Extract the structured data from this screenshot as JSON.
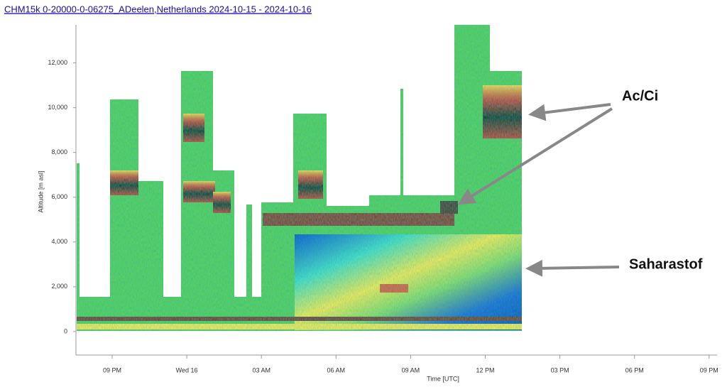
{
  "chart_data": {
    "type": "heatmap",
    "title": "CHM15k 0-20000-0-06275_ADeelen,Netherlands 2024-10-15 - 2024-10-16",
    "y_label": "Altitude [m asl]",
    "x_label": "Time [UTC]",
    "ylim": [
      -1050,
      13700
    ],
    "yticks": [
      0,
      {
        "value": 2000,
        "label": "2,000"
      },
      {
        "value": 4000,
        "label": "4,000"
      },
      {
        "value": 6000,
        "label": "6,000"
      },
      {
        "value": 8000,
        "label": "8,000"
      },
      {
        "value": 10000,
        "label": "10,000"
      },
      {
        "value": 12000,
        "label": "12,000"
      }
    ],
    "xticks": [
      "09 PM",
      "Wed 16",
      "03 AM",
      "06 AM",
      "09 AM",
      "12 PM",
      "03 PM",
      "06 PM",
      "09 PM"
    ],
    "annotations": [
      "Ac/Ci",
      "Saharastof"
    ]
  }
}
